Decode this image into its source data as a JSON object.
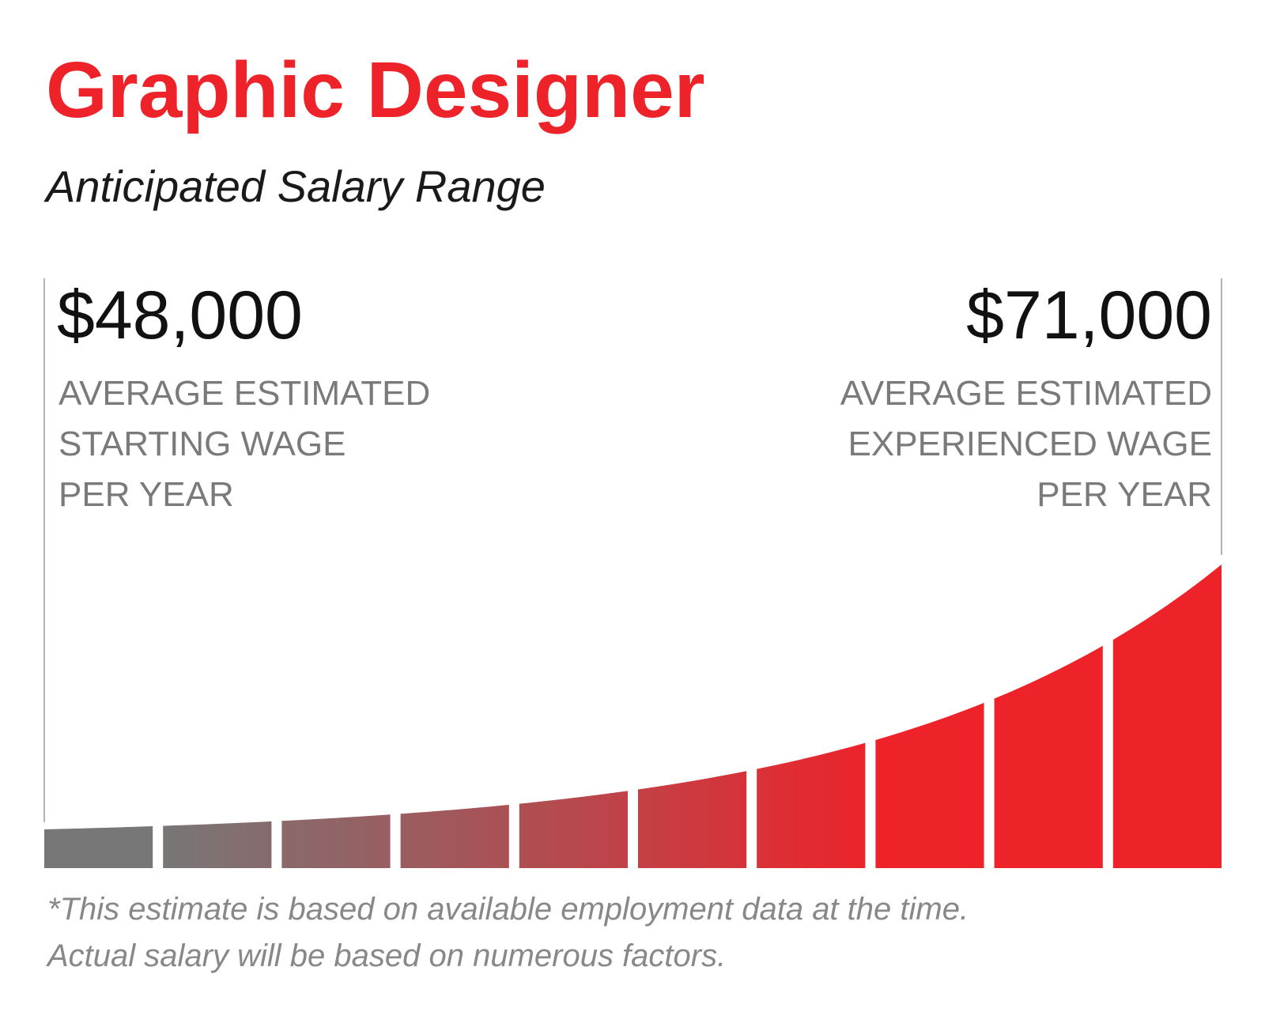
{
  "header": {
    "title": "Graphic Designer",
    "subtitle": "Anticipated Salary Range"
  },
  "start": {
    "amount": "$48,000",
    "label": [
      "AVERAGE ESTIMATED",
      "STARTING WAGE",
      "PER YEAR"
    ]
  },
  "experienced": {
    "amount": "$71,000",
    "label": [
      "AVERAGE ESTIMATED",
      "EXPERIENCED WAGE",
      "PER YEAR"
    ]
  },
  "footnote": [
    "*This estimate is based on available employment data at the time.",
    "Actual salary will be based on numerous factors."
  ]
}
